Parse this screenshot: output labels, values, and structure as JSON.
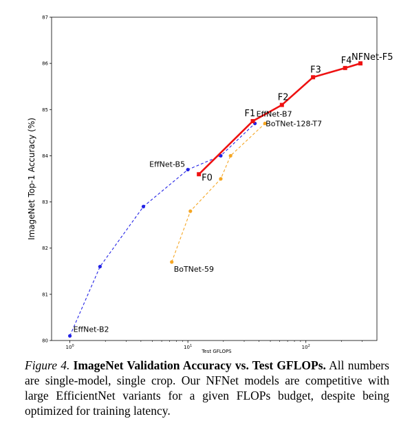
{
  "chart_data": {
    "type": "line",
    "x_scale": "log",
    "xlabel": "Test GFLOPS",
    "ylabel": "ImageNet Top-1 Accuracy (%)",
    "xlim": [
      0.7,
      400
    ],
    "ylim": [
      80,
      87
    ],
    "yticks": [
      "80",
      "81",
      "82",
      "83",
      "84",
      "85",
      "86",
      "87"
    ],
    "xticks": [
      {
        "value": 1,
        "base": "10",
        "exp": "0"
      },
      {
        "value": 10,
        "base": "10",
        "exp": "1"
      },
      {
        "value": 100,
        "base": "10",
        "exp": "2"
      }
    ],
    "series": [
      {
        "key": "efficientnet",
        "color": "#2222e6",
        "style": "dashed",
        "points": [
          {
            "x": 1.0,
            "y": 80.1,
            "label": "EffNet-B2"
          },
          {
            "x": 1.8,
            "y": 81.6,
            "label": ""
          },
          {
            "x": 4.2,
            "y": 82.9,
            "label": ""
          },
          {
            "x": 10.0,
            "y": 83.7,
            "label": "EffNet-B5"
          },
          {
            "x": 19.0,
            "y": 84.0,
            "label": ""
          },
          {
            "x": 37.0,
            "y": 84.7,
            "label": "EffNet-B7"
          }
        ]
      },
      {
        "key": "botnet",
        "color": "#f5a623",
        "style": "dashed",
        "points": [
          {
            "x": 7.3,
            "y": 81.7,
            "label": "BoTNet-59"
          },
          {
            "x": 10.5,
            "y": 82.8,
            "label": ""
          },
          {
            "x": 19.0,
            "y": 83.5,
            "label": ""
          },
          {
            "x": 23.0,
            "y": 84.0,
            "label": ""
          },
          {
            "x": 45.0,
            "y": 84.7,
            "label": "BoTNet-128-T7"
          }
        ]
      },
      {
        "key": "nfnet",
        "color": "#ee1111",
        "style": "solid",
        "points": [
          {
            "x": 12.4,
            "y": 83.6,
            "label": "F0"
          },
          {
            "x": 35.5,
            "y": 84.75,
            "label": "F1"
          },
          {
            "x": 62.6,
            "y": 85.1,
            "label": "F2"
          },
          {
            "x": 115,
            "y": 85.7,
            "label": "F3"
          },
          {
            "x": 215,
            "y": 85.9,
            "label": "F4"
          },
          {
            "x": 290,
            "y": 86.0,
            "label": "NFNet-F5"
          }
        ]
      }
    ]
  },
  "caption": {
    "label": "Figure 4.",
    "title": "ImageNet Validation Accuracy vs. Test GFLOPs.",
    "body": "All numbers are single-model, single crop. Our NFNet models are competitive with large EfficientNet variants for a given FLOPs budget, despite being optimized for training latency."
  }
}
